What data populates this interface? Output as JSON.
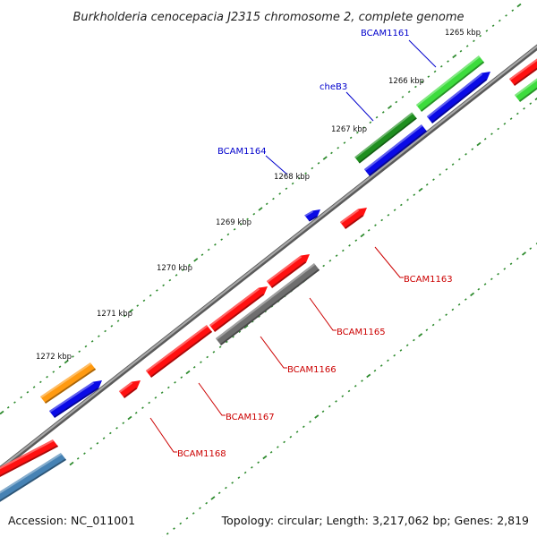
{
  "title": "Burkholderia cenocepacia J2315 chromosome 2, complete genome",
  "footer": {
    "accession": "Accession: NC_011001",
    "summary": "Topology: circular; Length: 3,217,062 bp; Genes: 2,819"
  },
  "colors": {
    "backbone": "#8c8c8c",
    "ticks": "#2e8b2e",
    "red": "#ff1010",
    "blue": "#0a0ae6",
    "green": "#3ddc3d",
    "dark_green": "#1f8f1f",
    "orange": "#ff9a10",
    "steel_blue": "#4682b4",
    "gray": "#6e6e6e",
    "label_blue": "#0000cc",
    "label_red": "#cc0000"
  },
  "tick_labels": [
    {
      "text": "1265 kbp",
      "kbp": 1265
    },
    {
      "text": "1266 kbp",
      "kbp": 1266
    },
    {
      "text": "1267 kbp",
      "kbp": 1267
    },
    {
      "text": "1268 kbp",
      "kbp": 1268
    },
    {
      "text": "1269 kbp",
      "kbp": 1269
    },
    {
      "text": "1270 kbp",
      "kbp": 1270
    },
    {
      "text": "1271 kbp",
      "kbp": 1271
    },
    {
      "text": "1272 kbp",
      "kbp": 1272
    }
  ],
  "gene_labels": [
    {
      "text": "BCAM1161",
      "color": "label_blue"
    },
    {
      "text": "cheB3",
      "color": "label_blue"
    },
    {
      "text": "BCAM1164",
      "color": "label_blue"
    },
    {
      "text": "BCAM1163",
      "color": "label_red"
    },
    {
      "text": "BCAM1165",
      "color": "label_red"
    },
    {
      "text": "BCAM1166",
      "color": "label_red"
    },
    {
      "text": "BCAM1167",
      "color": "label_red"
    },
    {
      "text": "BCAM1168",
      "color": "label_red"
    }
  ]
}
